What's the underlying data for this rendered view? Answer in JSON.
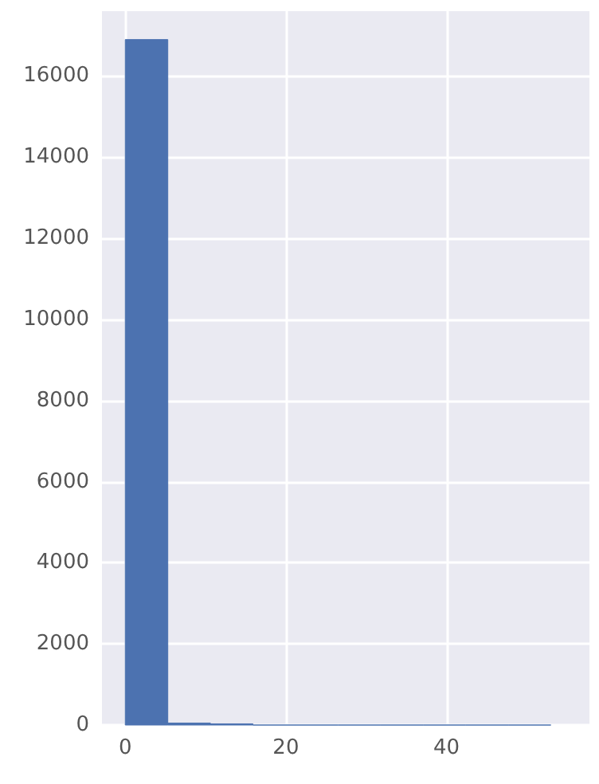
{
  "chart_data": {
    "type": "histogram",
    "bins": [
      0,
      5.3,
      10.6,
      15.9,
      21.2,
      26.5,
      31.8,
      37.1,
      42.4,
      47.7,
      53
    ],
    "values": [
      16900,
      50,
      30,
      0,
      0,
      0,
      0,
      0,
      0,
      0
    ],
    "color": "#4c72b0",
    "xlim": [
      -2.9,
      57.8
    ],
    "xticks": [
      0,
      20,
      40
    ],
    "ylim": [
      0,
      17600
    ],
    "yticks": [
      0,
      2000,
      4000,
      6000,
      8000,
      10000,
      12000,
      14000,
      16000
    ],
    "grid": true
  }
}
